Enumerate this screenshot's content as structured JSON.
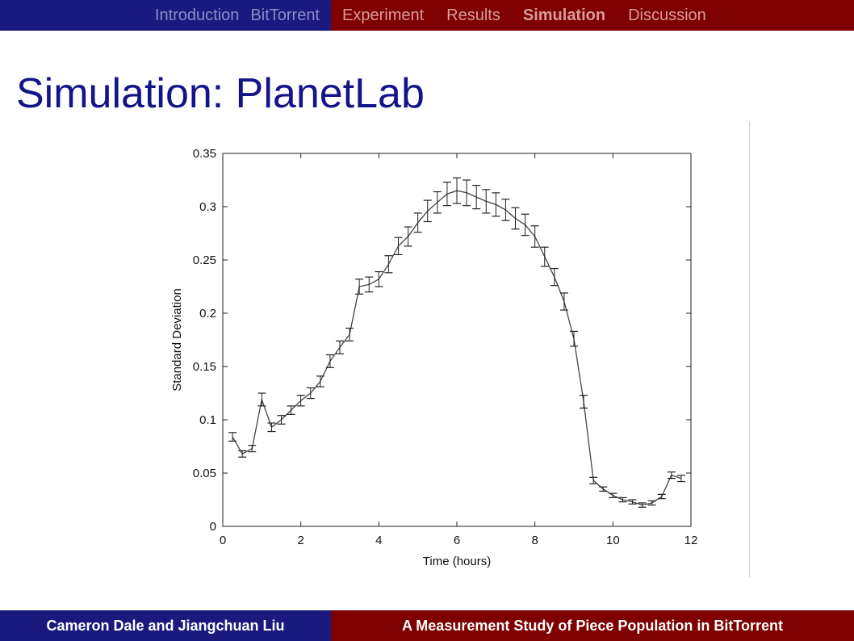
{
  "nav": {
    "left": [
      "Introduction",
      "BitTorrent"
    ],
    "right": [
      "Experiment",
      "Results",
      "Simulation",
      "Discussion"
    ],
    "active": "Simulation"
  },
  "slide": {
    "title": "Simulation: PlanetLab"
  },
  "footer": {
    "authors": "Cameron Dale and Jiangchuan Liu",
    "paper_title": "A Measurement Study of Piece Population in BitTorrent"
  },
  "colors": {
    "nav_left": "#1a1a7e",
    "nav_right": "#7e0000",
    "title": "#14148a"
  },
  "chart_data": {
    "type": "line",
    "title": "",
    "xlabel": "Time (hours)",
    "ylabel": "Standard Deviation",
    "xlim": [
      0,
      12
    ],
    "ylim": [
      0,
      0.35
    ],
    "xticks": [
      "0",
      "2",
      "4",
      "6",
      "8",
      "10",
      "12"
    ],
    "yticks": [
      "0",
      "0.05",
      "0.1",
      "0.15",
      "0.2",
      "0.25",
      "0.3",
      "0.35"
    ],
    "grid": false,
    "error_bars": true,
    "series": [
      {
        "x": [
          0.25,
          0.5,
          0.75,
          1.0,
          1.25,
          1.5,
          1.75,
          2.0,
          2.25,
          2.5,
          2.75,
          3.0,
          3.25,
          3.5,
          3.75,
          4.0,
          4.25,
          4.5,
          4.75,
          5.0,
          5.25,
          5.5,
          5.75,
          6.0,
          6.25,
          6.5,
          6.75,
          7.0,
          7.25,
          7.5,
          7.75,
          8.0,
          8.25,
          8.5,
          8.75,
          9.0,
          9.25,
          9.5,
          9.75,
          10.0,
          10.25,
          10.5,
          10.75,
          11.0,
          11.25,
          11.5,
          11.75
        ],
        "y": [
          0.084,
          0.068,
          0.073,
          0.119,
          0.093,
          0.1,
          0.109,
          0.118,
          0.125,
          0.136,
          0.155,
          0.168,
          0.18,
          0.225,
          0.227,
          0.232,
          0.246,
          0.263,
          0.272,
          0.285,
          0.296,
          0.304,
          0.312,
          0.315,
          0.313,
          0.309,
          0.305,
          0.302,
          0.297,
          0.289,
          0.283,
          0.272,
          0.253,
          0.234,
          0.211,
          0.176,
          0.117,
          0.043,
          0.035,
          0.029,
          0.025,
          0.023,
          0.02,
          0.022,
          0.028,
          0.048,
          0.045
        ],
        "err": [
          0.004,
          0.003,
          0.003,
          0.006,
          0.004,
          0.004,
          0.004,
          0.005,
          0.005,
          0.005,
          0.006,
          0.006,
          0.006,
          0.007,
          0.007,
          0.007,
          0.008,
          0.008,
          0.009,
          0.009,
          0.01,
          0.01,
          0.011,
          0.012,
          0.012,
          0.011,
          0.011,
          0.011,
          0.01,
          0.01,
          0.01,
          0.01,
          0.009,
          0.008,
          0.008,
          0.007,
          0.006,
          0.003,
          0.002,
          0.002,
          0.002,
          0.002,
          0.002,
          0.002,
          0.002,
          0.003,
          0.003
        ]
      }
    ]
  }
}
